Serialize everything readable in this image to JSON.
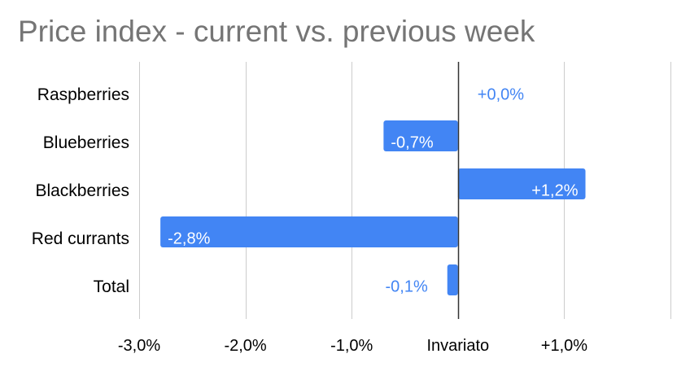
{
  "chart_data": {
    "type": "bar",
    "orientation": "horizontal",
    "title": "Price index - current vs. previous week",
    "categories": [
      "Raspberries",
      "Blueberries",
      "Blackberries",
      "Red currants",
      "Total"
    ],
    "values": [
      0.0,
      -0.7,
      1.2,
      -2.8,
      -0.1
    ],
    "data_labels": [
      "+0,0%",
      "-0,7%",
      "+1,2%",
      "-2,8%",
      "-0,1%"
    ],
    "x_ticks": [
      {
        "value": -3,
        "label": "-3,0%"
      },
      {
        "value": -2,
        "label": "-2,0%"
      },
      {
        "value": -1,
        "label": "-1,0%"
      },
      {
        "value": 0,
        "label": "Invariato"
      },
      {
        "value": 1,
        "label": "+1,0%"
      }
    ],
    "xlim": [
      -3,
      2
    ],
    "xlabel": "",
    "ylabel": "",
    "grid": true,
    "legend": "none",
    "colors": {
      "bar": "#4285f4",
      "label_inside": "#ffffff",
      "label_outside": "#4285f4",
      "grid": "#cccccc",
      "zero_line": "#333333",
      "text": "#000000",
      "title": "#757575"
    }
  }
}
